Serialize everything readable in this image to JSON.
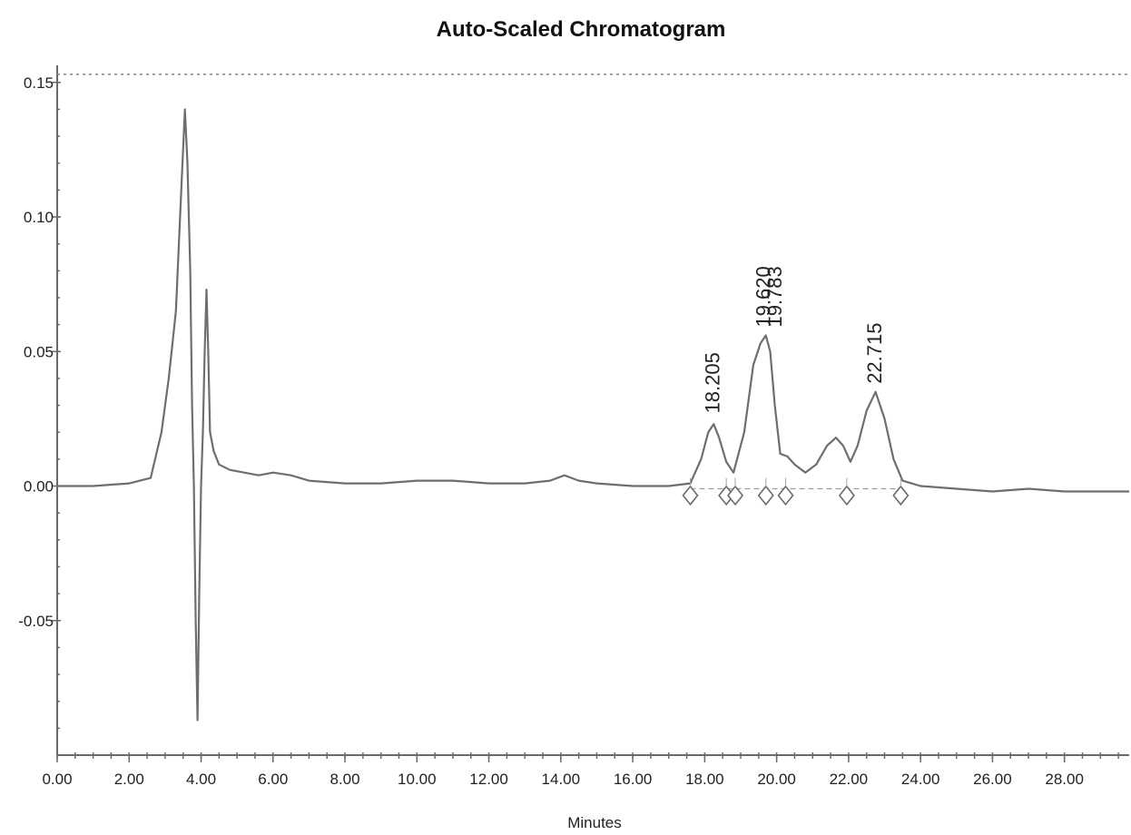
{
  "chart_data": {
    "type": "line",
    "title": "Auto-Scaled Chromatogram",
    "xlabel": "Minutes",
    "ylabel": "",
    "xlim": [
      0,
      29.8
    ],
    "ylim": [
      -0.1,
      0.155
    ],
    "x_ticks": [
      "0.00",
      "2.00",
      "4.00",
      "6.00",
      "8.00",
      "10.00",
      "12.00",
      "14.00",
      "16.00",
      "18.00",
      "20.00",
      "22.00",
      "24.00",
      "26.00",
      "28.00"
    ],
    "x_tick_values": [
      0,
      2,
      4,
      6,
      8,
      10,
      12,
      14,
      16,
      18,
      20,
      22,
      24,
      26,
      28
    ],
    "y_ticks": [
      "-0.05",
      "0.00",
      "0.05",
      "0.10",
      "0.15"
    ],
    "y_tick_values": [
      -0.05,
      0,
      0.05,
      0.1,
      0.15
    ],
    "grid": false,
    "series": [
      {
        "x": [
          0,
          1.0,
          2.0,
          2.6,
          2.9,
          3.1,
          3.3,
          3.45,
          3.55,
          3.62,
          3.7,
          3.75,
          3.8,
          3.85,
          3.9,
          3.95,
          4.0,
          4.05,
          4.1,
          4.15,
          4.2,
          4.25,
          4.35,
          4.5,
          4.8,
          5.2,
          5.6,
          6.0,
          6.5,
          7.0,
          8.0,
          9.0,
          10.0,
          11.0,
          12.0,
          13.0,
          13.7,
          14.1,
          14.5,
          15.0,
          16.0,
          17.0,
          17.6,
          17.9,
          18.1,
          18.25,
          18.4,
          18.6,
          18.8,
          19.1,
          19.35,
          19.55,
          19.7,
          19.82,
          19.95,
          20.1,
          20.3,
          20.5,
          20.8,
          21.1,
          21.4,
          21.65,
          21.85,
          22.05,
          22.25,
          22.5,
          22.75,
          23.0,
          23.25,
          23.5,
          24.0,
          25.0,
          26.0,
          27.0,
          28.0,
          29.8
        ],
        "values": [
          0.0,
          0.0,
          0.001,
          0.003,
          0.02,
          0.04,
          0.065,
          0.11,
          0.14,
          0.12,
          0.08,
          0.03,
          0.0,
          -0.05,
          -0.087,
          -0.04,
          0.0,
          0.02,
          0.05,
          0.073,
          0.05,
          0.02,
          0.013,
          0.008,
          0.006,
          0.005,
          0.004,
          0.005,
          0.004,
          0.002,
          0.001,
          0.001,
          0.002,
          0.002,
          0.001,
          0.001,
          0.002,
          0.004,
          0.002,
          0.001,
          0.0,
          0.0,
          0.001,
          0.01,
          0.02,
          0.023,
          0.018,
          0.009,
          0.005,
          0.02,
          0.045,
          0.053,
          0.056,
          0.05,
          0.03,
          0.012,
          0.011,
          0.008,
          0.005,
          0.008,
          0.015,
          0.018,
          0.015,
          0.009,
          0.015,
          0.028,
          0.035,
          0.025,
          0.01,
          0.002,
          0.0,
          -0.001,
          -0.002,
          -0.001,
          -0.002,
          -0.002
        ]
      }
    ],
    "peak_labels": [
      {
        "text": "18.205",
        "x": 18.205,
        "y": 0.025
      },
      {
        "text": "19.620",
        "x": 19.62,
        "y": 0.057
      },
      {
        "text": "19.783",
        "x": 19.783,
        "y": 0.057
      },
      {
        "text": "22.715",
        "x": 22.715,
        "y": 0.036
      }
    ],
    "integration_markers": [
      17.6,
      18.6,
      18.85,
      19.7,
      20.25,
      21.95,
      23.45
    ],
    "colors": {
      "trace": "#6e6e6e",
      "axis": "#6a6a6a",
      "baseline": "#8aa0b8"
    }
  }
}
